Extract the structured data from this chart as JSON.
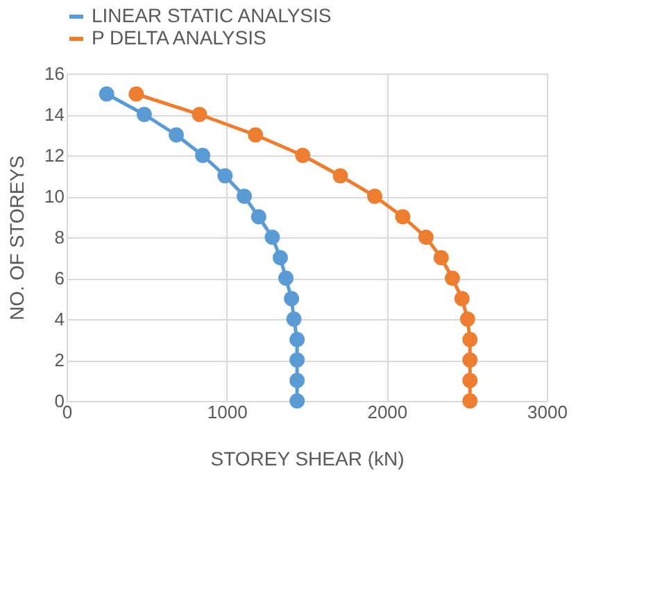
{
  "chart_data": {
    "type": "line",
    "xlabel": "STOREY SHEAR (kN)",
    "ylabel": "NO. OF STOREYS",
    "xlim": [
      0,
      3000
    ],
    "ylim": [
      0,
      16
    ],
    "xticks": [
      0,
      1000,
      2000,
      3000
    ],
    "yticks": [
      0,
      2,
      4,
      6,
      8,
      10,
      12,
      14,
      16
    ],
    "grid": true,
    "legend": "top",
    "marker": "circle",
    "series": [
      {
        "name": "LINEAR STATIC ANALYSIS",
        "color": "#5b9bd5",
        "x": [
          250,
          485,
          685,
          850,
          990,
          1110,
          1200,
          1285,
          1335,
          1370,
          1405,
          1420,
          1440,
          1440,
          1440,
          1440
        ],
        "values": [
          15,
          14,
          13,
          12,
          11,
          10,
          9,
          8,
          7,
          6,
          5,
          4,
          3,
          2,
          1,
          0
        ]
      },
      {
        "name": "P DELTA ANALYSIS",
        "color": "#ed7d31",
        "x": [
          435,
          830,
          1180,
          1475,
          1710,
          1925,
          2100,
          2245,
          2340,
          2410,
          2470,
          2505,
          2520,
          2520,
          2520,
          2520
        ],
        "values": [
          15,
          14,
          13,
          12,
          11,
          10,
          9,
          8,
          7,
          6,
          5,
          4,
          3,
          2,
          1,
          0
        ]
      }
    ]
  }
}
